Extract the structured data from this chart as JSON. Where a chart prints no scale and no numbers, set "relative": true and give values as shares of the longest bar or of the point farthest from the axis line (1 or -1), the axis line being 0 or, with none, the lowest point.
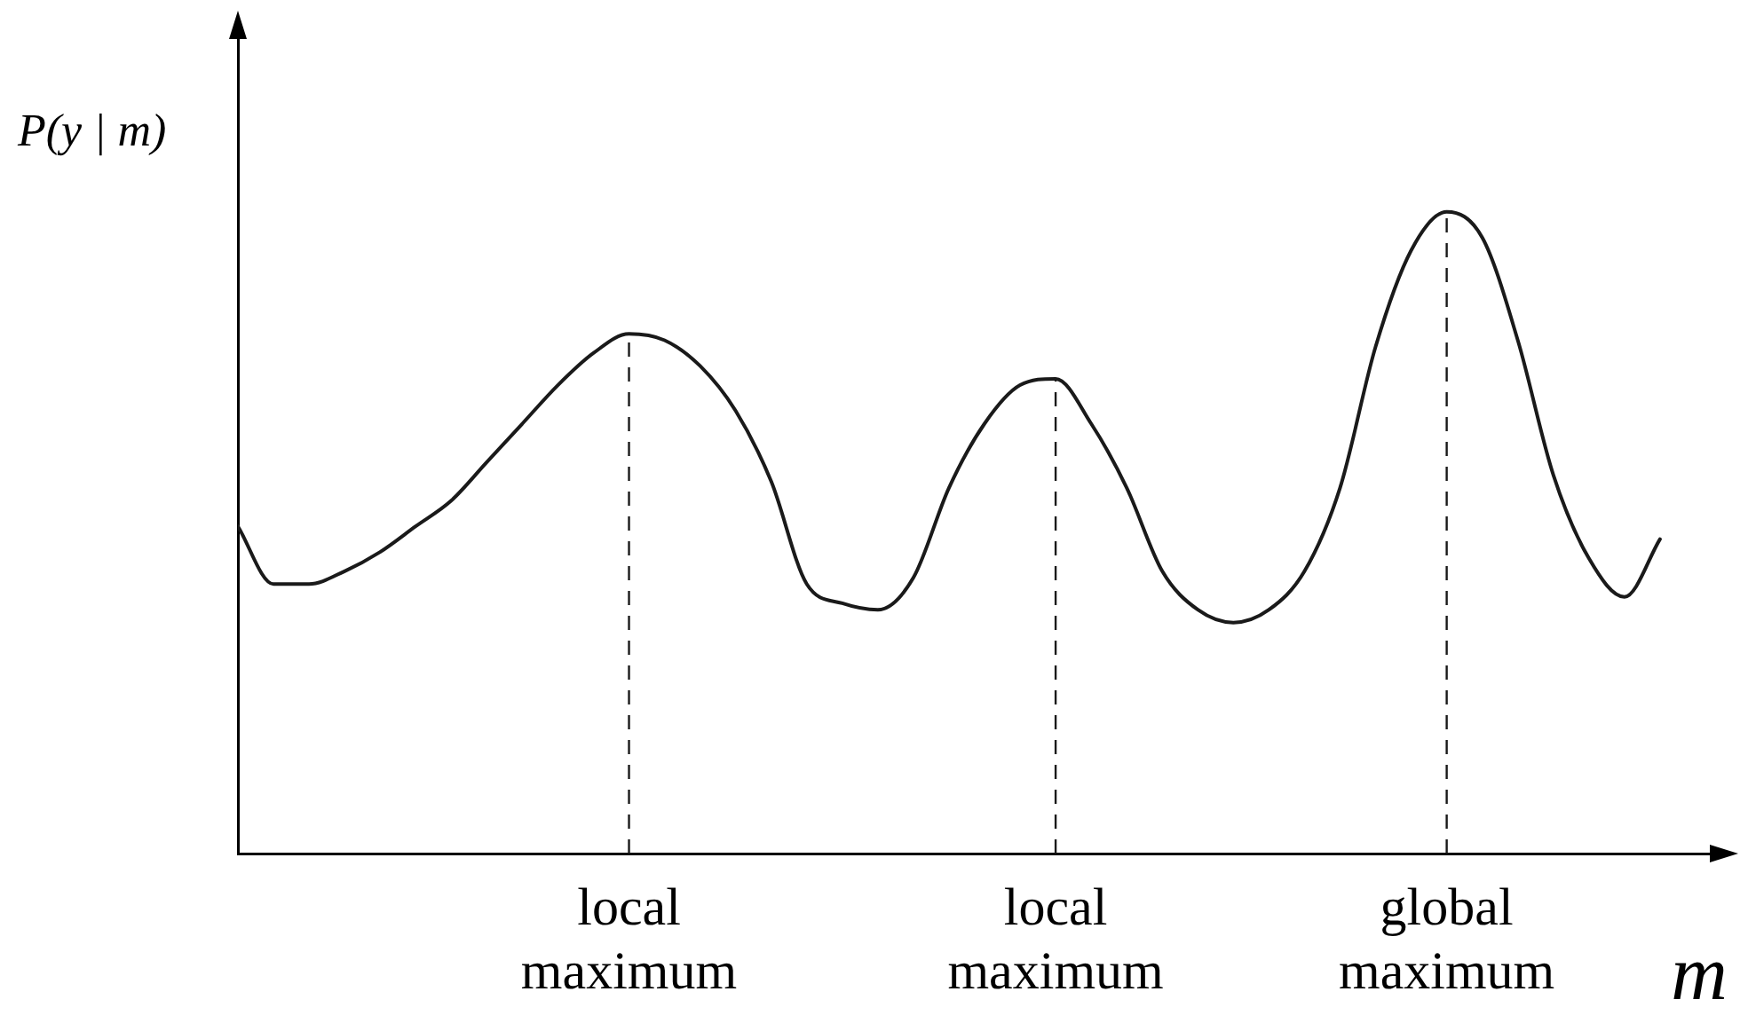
{
  "chart_data": {
    "type": "line",
    "relative": true,
    "ylabel": "P(y | m)",
    "xlabel": "m",
    "categories": [
      null,
      null,
      null,
      null,
      null,
      null,
      null,
      null,
      null,
      null,
      null,
      "local\nmaximum",
      null,
      null,
      null,
      null,
      null,
      null,
      null,
      null,
      null,
      null,
      null,
      "local\nmaximum",
      null,
      null,
      null,
      null,
      null,
      null,
      null,
      null,
      null,
      null,
      "global\nmaximum",
      null,
      null,
      null,
      null,
      null,
      null
    ],
    "tick_labels": "x",
    "grid": "x",
    "legend": false,
    "marker": "none",
    "line_style": "solid",
    "series": [
      {
        "color": "#1a1a1a",
        "values": [
          0.51,
          0.42,
          0.42,
          0.44,
          0.47,
          0.51,
          0.55,
          0.61,
          0.67,
          0.73,
          0.78,
          0.81,
          0.8,
          0.76,
          0.69,
          0.58,
          0.42,
          0.39,
          0.38,
          0.43,
          0.57,
          0.67,
          0.73,
          0.74,
          0.67,
          0.57,
          0.44,
          0.38,
          0.36,
          0.38,
          0.44,
          0.57,
          0.79,
          0.94,
          1,
          0.96,
          0.8,
          0.59,
          0.46,
          0.4,
          0.49
        ]
      }
    ]
  }
}
